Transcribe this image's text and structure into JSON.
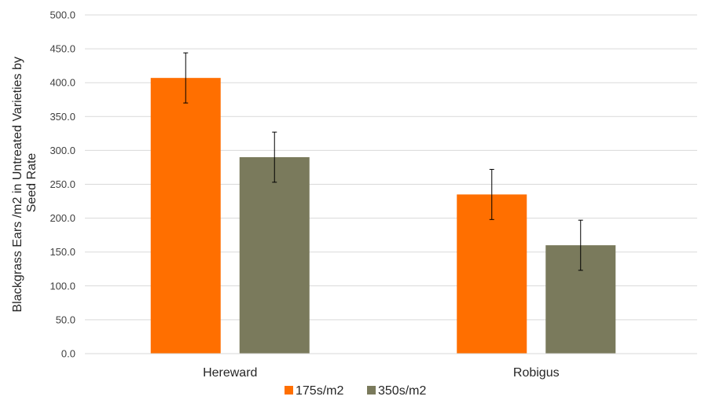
{
  "chart_data": {
    "type": "bar",
    "title": "",
    "xlabel": "",
    "ylabel_lines": [
      "Blackgrass Ears /m2 in Untreated Varieties by",
      "Seed Rate"
    ],
    "categories": [
      "Hereward",
      "Robigus"
    ],
    "ylim": [
      0,
      500
    ],
    "ytick_step": 50,
    "ytick_labels": [
      "0.0",
      "50.0",
      "100.0",
      "150.0",
      "200.0",
      "250.0",
      "300.0",
      "350.0",
      "400.0",
      "450.0",
      "500.0"
    ],
    "grid": true,
    "legend_position": "bottom",
    "series": [
      {
        "name": "175s/m2",
        "color": "#ff6f00",
        "values": [
          407,
          235
        ],
        "error": [
          37,
          37
        ]
      },
      {
        "name": "350s/m2",
        "color": "#7a7a5c",
        "values": [
          290,
          160
        ],
        "error": [
          37,
          37
        ]
      }
    ]
  }
}
